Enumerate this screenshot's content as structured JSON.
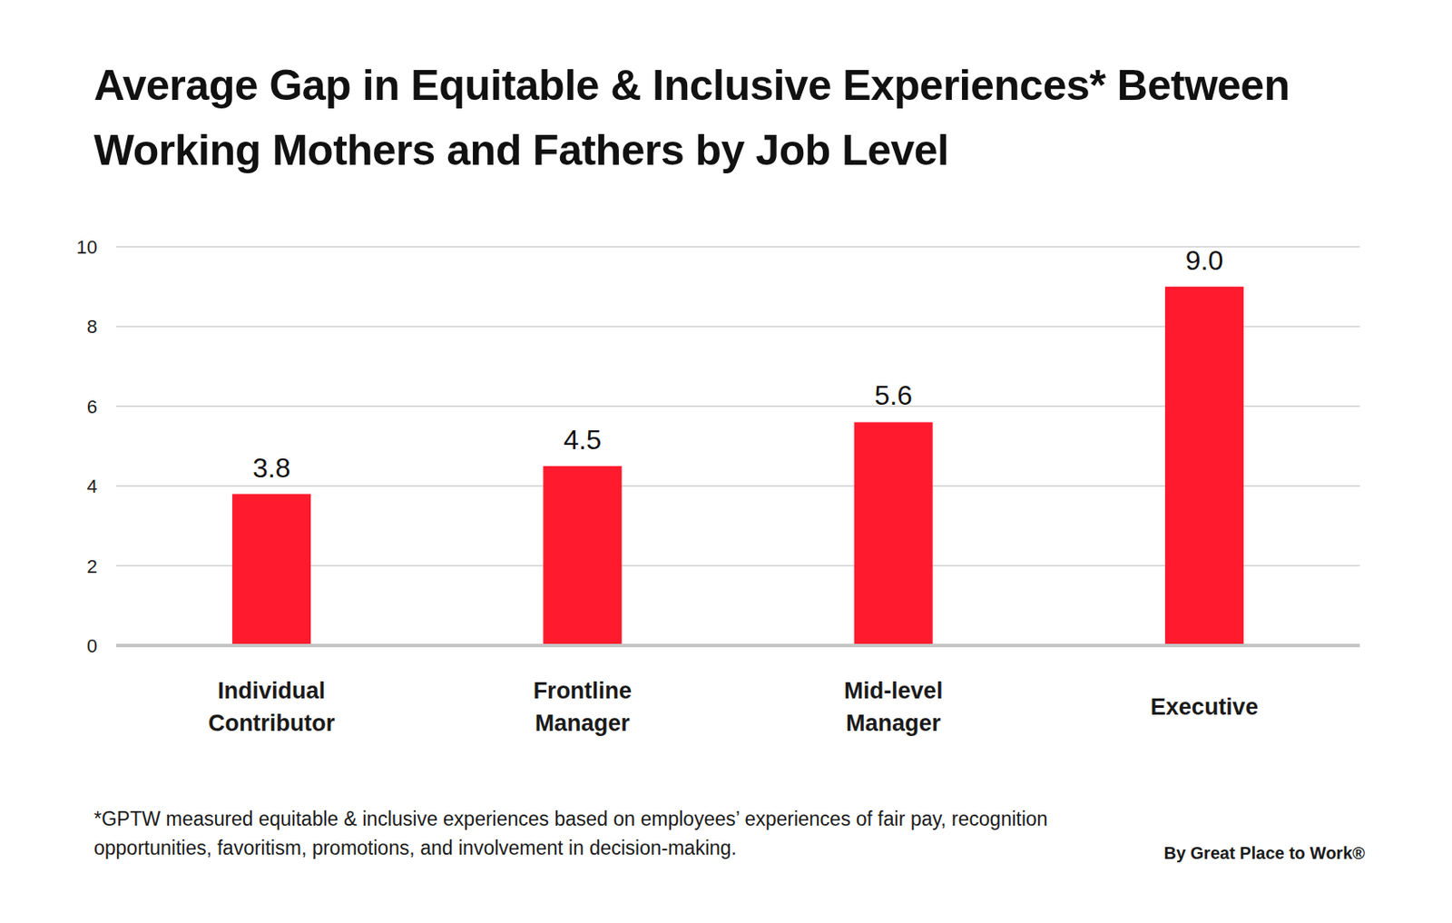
{
  "chart_data": {
    "type": "bar",
    "title": "Average Gap in Equitable & Inclusive Experiences* Between Working Mothers and Fathers by Job Level",
    "categories": [
      "Individual Contributor",
      "Frontline Manager",
      "Mid-level Manager",
      "Executive"
    ],
    "values": [
      3.8,
      4.5,
      5.6,
      9.0
    ],
    "value_labels": [
      "3.8",
      "4.5",
      "5.6",
      "9.0"
    ],
    "color": "#ff1a2e",
    "ylim": [
      0,
      10
    ],
    "yticks": [
      0,
      2,
      4,
      6,
      8,
      10
    ],
    "grid": true,
    "data_labels": true,
    "footnote": "*GPTW measured equitable & inclusive experiences based on employees’ experiences of fair pay, recognition opportunities, favoritism, promotions, and involvement in decision-making.",
    "source": "By Great Place to Work®"
  }
}
